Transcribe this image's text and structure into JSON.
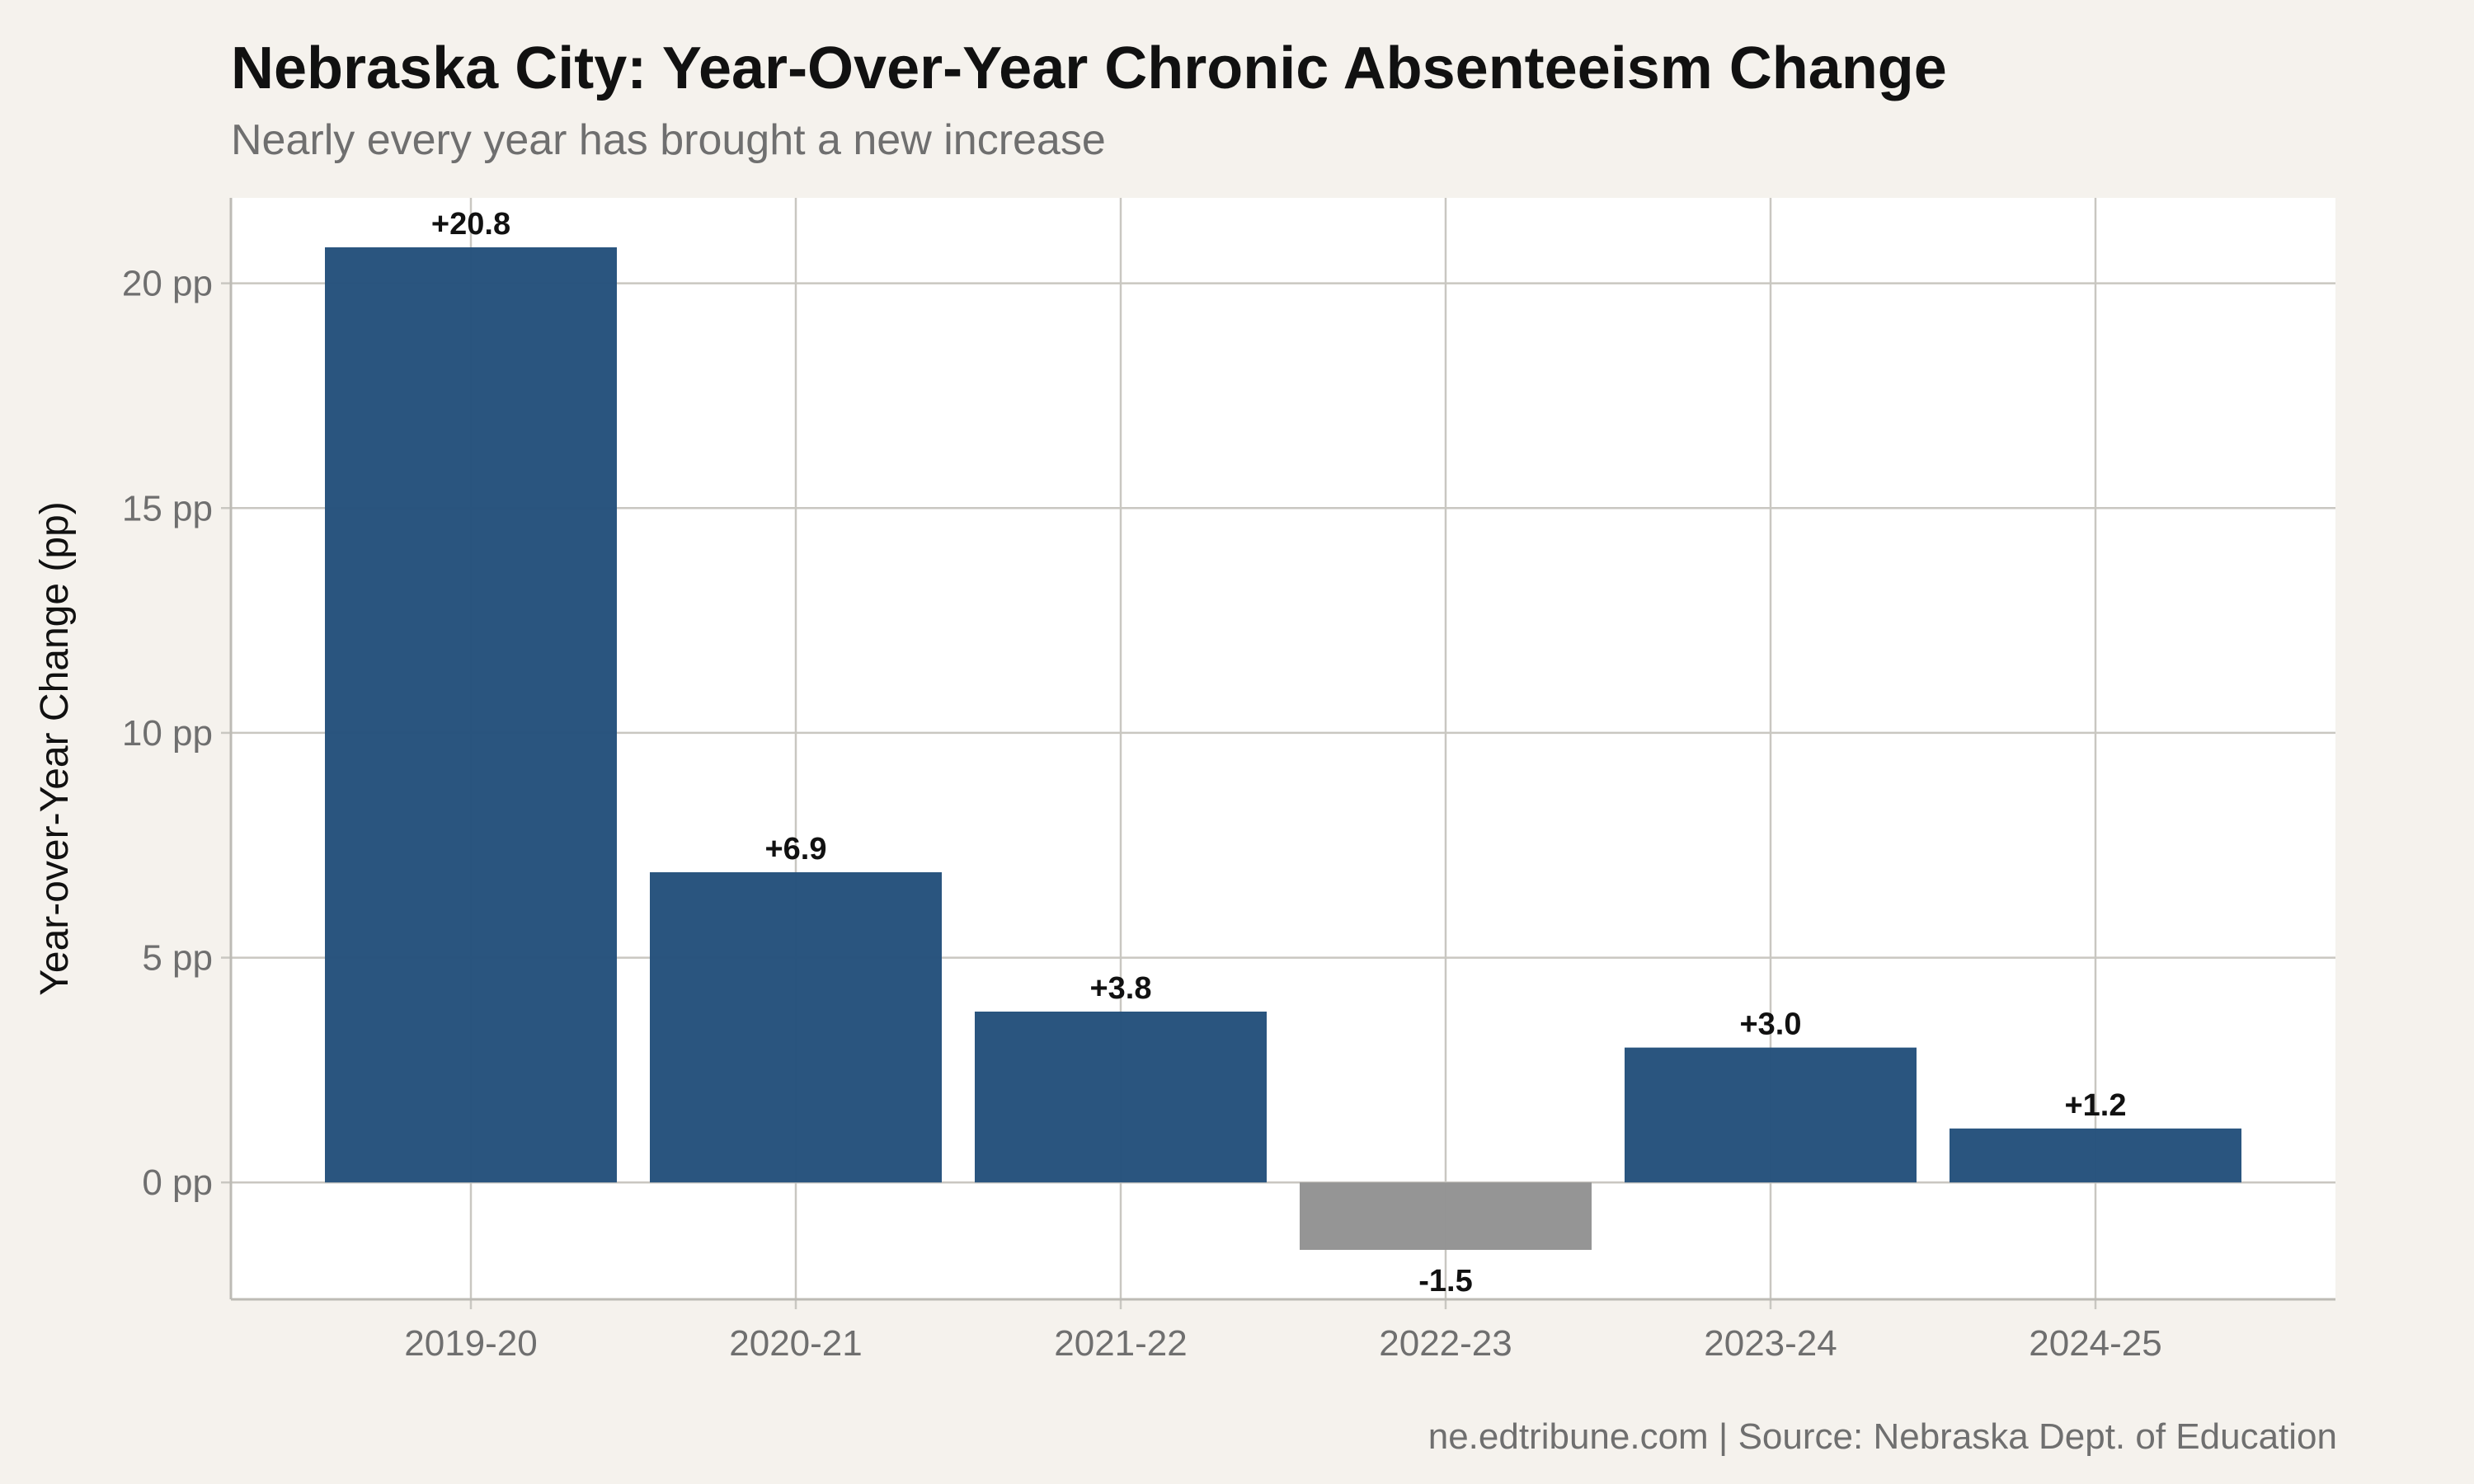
{
  "chart_data": {
    "type": "bar",
    "title": "Nebraska City: Year-Over-Year Chronic Absenteeism Change",
    "subtitle": "Nearly every year has brought a new increase",
    "caption": "ne.edtribune.com | Source: Nebraska Dept. of Education",
    "xlabel": "",
    "ylabel": "Year-over-Year Change (pp)",
    "categories": [
      "2019-20",
      "2020-21",
      "2021-22",
      "2022-23",
      "2023-24",
      "2024-25"
    ],
    "values": [
      20.8,
      6.9,
      3.8,
      -1.5,
      3.0,
      1.2
    ],
    "data_labels": [
      "+20.8",
      "+6.9",
      "+3.8",
      "-1.5",
      "+3.0",
      "+1.2"
    ],
    "ylim": [
      -2.6,
      21.9
    ],
    "yticks": [
      0,
      5,
      10,
      15,
      20
    ],
    "ytick_labels": [
      "0 pp",
      "5 pp",
      "10 pp",
      "15 pp",
      "20 pp"
    ],
    "grid": true,
    "legend": "none",
    "colors": {
      "increase": "#26527c",
      "decrease": "#939393",
      "panel_background": "#ffffff",
      "page_background": "#f5f2ed",
      "gridline": "#c9c7c1"
    }
  }
}
